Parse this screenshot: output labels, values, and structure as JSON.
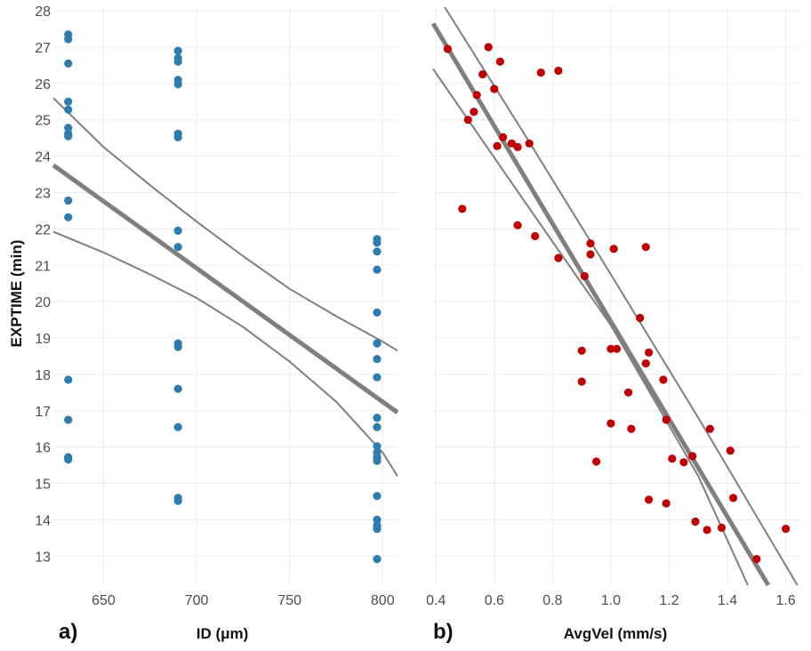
{
  "chart_data": [
    {
      "type": "scatter",
      "panel_label": "a)",
      "xlabel": "ID (μm)",
      "ylabel": "EXPTIME (min)",
      "xlim": [
        623,
        808
      ],
      "ylim": [
        12.2,
        28.1
      ],
      "xticks": [
        650,
        700,
        750,
        800
      ],
      "yticks": [
        13,
        14,
        15,
        16,
        17,
        18,
        19,
        20,
        21,
        22,
        23,
        24,
        25,
        26,
        27,
        28
      ],
      "point_color": "#2e7bad",
      "line_color": "#7f7f7f",
      "points": [
        {
          "x": 631,
          "y": 27.35
        },
        {
          "x": 631,
          "y": 27.22
        },
        {
          "x": 631,
          "y": 26.55
        },
        {
          "x": 631,
          "y": 25.5
        },
        {
          "x": 631,
          "y": 25.28
        },
        {
          "x": 631,
          "y": 24.78
        },
        {
          "x": 631,
          "y": 24.62
        },
        {
          "x": 631,
          "y": 24.55
        },
        {
          "x": 631,
          "y": 22.78
        },
        {
          "x": 631,
          "y": 22.32
        },
        {
          "x": 631,
          "y": 17.85
        },
        {
          "x": 631,
          "y": 16.75
        },
        {
          "x": 631,
          "y": 15.72
        },
        {
          "x": 631,
          "y": 15.66
        },
        {
          "x": 690,
          "y": 26.9
        },
        {
          "x": 690,
          "y": 26.7
        },
        {
          "x": 690,
          "y": 26.6
        },
        {
          "x": 690,
          "y": 26.1
        },
        {
          "x": 690,
          "y": 25.98
        },
        {
          "x": 690,
          "y": 24.62
        },
        {
          "x": 690,
          "y": 24.52
        },
        {
          "x": 690,
          "y": 21.95
        },
        {
          "x": 690,
          "y": 21.5
        },
        {
          "x": 690,
          "y": 18.85
        },
        {
          "x": 690,
          "y": 18.75
        },
        {
          "x": 690,
          "y": 17.6
        },
        {
          "x": 690,
          "y": 16.55
        },
        {
          "x": 690,
          "y": 14.6
        },
        {
          "x": 690,
          "y": 14.52
        },
        {
          "x": 797,
          "y": 21.72
        },
        {
          "x": 797,
          "y": 21.62
        },
        {
          "x": 797,
          "y": 21.38
        },
        {
          "x": 797,
          "y": 20.88
        },
        {
          "x": 797,
          "y": 19.7
        },
        {
          "x": 797,
          "y": 18.85
        },
        {
          "x": 797,
          "y": 18.42
        },
        {
          "x": 797,
          "y": 17.92
        },
        {
          "x": 797,
          "y": 16.8
        },
        {
          "x": 797,
          "y": 16.55
        },
        {
          "x": 797,
          "y": 16.02
        },
        {
          "x": 797,
          "y": 15.85
        },
        {
          "x": 797,
          "y": 15.72
        },
        {
          "x": 797,
          "y": 15.62
        },
        {
          "x": 797,
          "y": 14.65
        },
        {
          "x": 797,
          "y": 14.0
        },
        {
          "x": 797,
          "y": 13.85
        },
        {
          "x": 797,
          "y": 13.75
        },
        {
          "x": 797,
          "y": 12.92
        }
      ],
      "fit_line": {
        "x": [
          623,
          808
        ],
        "y": [
          23.75,
          16.95
        ]
      },
      "ci_upper": {
        "x": [
          623,
          650,
          675,
          700,
          725,
          750,
          775,
          800,
          808
        ],
        "y": [
          25.6,
          24.25,
          23.2,
          22.2,
          21.25,
          20.35,
          19.6,
          18.9,
          18.65
        ]
      },
      "ci_lower": {
        "x": [
          623,
          650,
          675,
          700,
          725,
          750,
          775,
          800,
          808
        ],
        "y": [
          21.92,
          21.35,
          20.75,
          20.1,
          19.3,
          18.35,
          17.25,
          15.85,
          15.2
        ]
      }
    },
    {
      "type": "scatter",
      "panel_label": "b)",
      "xlabel": "AvgVel (mm/s)",
      "ylabel": "",
      "xlim": [
        0.39,
        1.65
      ],
      "ylim": [
        12.2,
        28.1
      ],
      "xticks": [
        0.4,
        0.6,
        0.8,
        1.0,
        1.2,
        1.4,
        1.6
      ],
      "yticks": [
        13,
        14,
        15,
        16,
        17,
        18,
        19,
        20,
        21,
        22,
        23,
        24,
        25,
        26,
        27,
        28
      ],
      "point_color": "#c00000",
      "line_color": "#7f7f7f",
      "points": [
        {
          "x": 0.44,
          "y": 26.95
        },
        {
          "x": 0.58,
          "y": 27.0
        },
        {
          "x": 0.62,
          "y": 26.6
        },
        {
          "x": 0.56,
          "y": 26.25
        },
        {
          "x": 0.76,
          "y": 26.3
        },
        {
          "x": 0.82,
          "y": 26.35
        },
        {
          "x": 0.6,
          "y": 25.85
        },
        {
          "x": 0.54,
          "y": 25.68
        },
        {
          "x": 0.53,
          "y": 25.22
        },
        {
          "x": 0.51,
          "y": 25.0
        },
        {
          "x": 0.63,
          "y": 24.52
        },
        {
          "x": 0.66,
          "y": 24.35
        },
        {
          "x": 0.61,
          "y": 24.28
        },
        {
          "x": 0.68,
          "y": 24.25
        },
        {
          "x": 0.72,
          "y": 24.35
        },
        {
          "x": 0.49,
          "y": 22.55
        },
        {
          "x": 0.68,
          "y": 22.1
        },
        {
          "x": 0.74,
          "y": 21.8
        },
        {
          "x": 0.93,
          "y": 21.6
        },
        {
          "x": 1.01,
          "y": 21.45
        },
        {
          "x": 1.12,
          "y": 21.5
        },
        {
          "x": 0.93,
          "y": 21.3
        },
        {
          "x": 0.82,
          "y": 21.2
        },
        {
          "x": 0.91,
          "y": 20.7
        },
        {
          "x": 1.1,
          "y": 19.55
        },
        {
          "x": 0.9,
          "y": 18.65
        },
        {
          "x": 1.0,
          "y": 18.7
        },
        {
          "x": 1.02,
          "y": 18.7
        },
        {
          "x": 1.13,
          "y": 18.6
        },
        {
          "x": 1.12,
          "y": 18.3
        },
        {
          "x": 0.9,
          "y": 17.8
        },
        {
          "x": 1.18,
          "y": 17.85
        },
        {
          "x": 1.06,
          "y": 17.5
        },
        {
          "x": 1.19,
          "y": 16.75
        },
        {
          "x": 1.0,
          "y": 16.65
        },
        {
          "x": 1.07,
          "y": 16.5
        },
        {
          "x": 1.34,
          "y": 16.5
        },
        {
          "x": 1.41,
          "y": 15.9
        },
        {
          "x": 1.28,
          "y": 15.75
        },
        {
          "x": 0.95,
          "y": 15.6
        },
        {
          "x": 1.21,
          "y": 15.68
        },
        {
          "x": 1.25,
          "y": 15.58
        },
        {
          "x": 1.13,
          "y": 14.55
        },
        {
          "x": 1.19,
          "y": 14.45
        },
        {
          "x": 1.42,
          "y": 14.6
        },
        {
          "x": 1.29,
          "y": 13.95
        },
        {
          "x": 1.33,
          "y": 13.72
        },
        {
          "x": 1.38,
          "y": 13.78
        },
        {
          "x": 1.6,
          "y": 13.75
        },
        {
          "x": 1.5,
          "y": 12.92
        }
      ],
      "fit_line": {
        "x": [
          0.39,
          1.54
        ],
        "y": [
          27.65,
          12.2
        ]
      },
      "ci_upper": {
        "x": [
          0.43,
          0.7,
          1.0,
          1.3,
          1.64
        ],
        "y": [
          28.1,
          24.65,
          20.75,
          16.8,
          12.2
        ]
      },
      "ci_lower": {
        "x": [
          0.39,
          0.7,
          1.0,
          1.3,
          1.47
        ],
        "y": [
          26.4,
          22.8,
          19.35,
          15.2,
          12.2
        ]
      }
    }
  ]
}
